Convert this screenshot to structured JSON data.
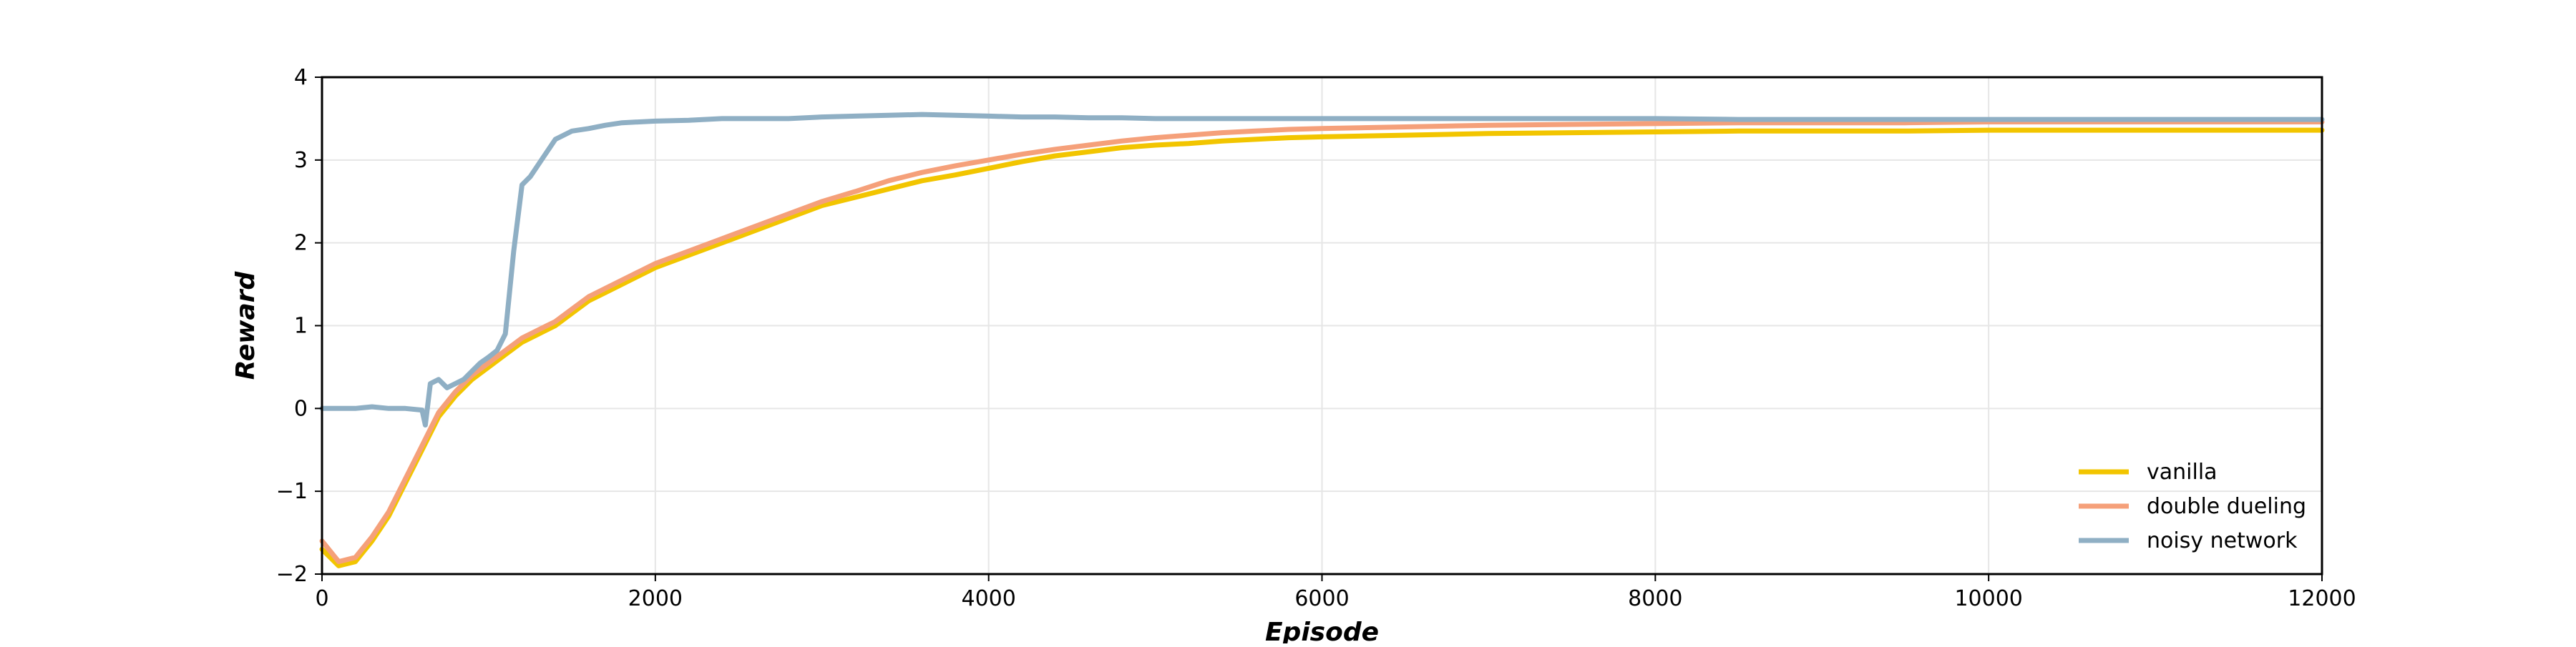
{
  "chart_data": {
    "type": "line",
    "title": "",
    "xlabel": "Episode",
    "ylabel": "Reward",
    "xlim": [
      0,
      12000
    ],
    "ylim": [
      -2,
      4
    ],
    "xticks": [
      0,
      2000,
      4000,
      6000,
      8000,
      10000,
      12000
    ],
    "xtick_labels": [
      "0",
      "2000",
      "4000",
      "6000",
      "8000",
      "10000",
      "12000"
    ],
    "yticks": [
      -2,
      -1,
      0,
      1,
      2,
      3,
      4
    ],
    "ytick_labels": [
      "−2",
      "−1",
      "0",
      "1",
      "2",
      "3",
      "4"
    ],
    "grid": true,
    "legend_position": "lower-right",
    "series": [
      {
        "name": "vanilla",
        "color": "#f2c500",
        "x": [
          0,
          100,
          200,
          300,
          400,
          500,
          600,
          700,
          800,
          900,
          1000,
          1100,
          1200,
          1300,
          1400,
          1500,
          1600,
          1700,
          1800,
          1900,
          2000,
          2200,
          2400,
          2600,
          2800,
          3000,
          3200,
          3400,
          3600,
          3800,
          4000,
          4200,
          4400,
          4600,
          4800,
          5000,
          5200,
          5400,
          5600,
          5800,
          6000,
          6500,
          7000,
          7500,
          8000,
          8500,
          9000,
          9500,
          10000,
          10500,
          11000,
          11500,
          12000
        ],
        "y": [
          -1.7,
          -1.9,
          -1.85,
          -1.6,
          -1.3,
          -0.9,
          -0.5,
          -0.1,
          0.15,
          0.35,
          0.5,
          0.65,
          0.8,
          0.9,
          1.0,
          1.15,
          1.3,
          1.4,
          1.5,
          1.6,
          1.7,
          1.85,
          2.0,
          2.15,
          2.3,
          2.45,
          2.55,
          2.65,
          2.75,
          2.82,
          2.9,
          2.98,
          3.05,
          3.1,
          3.15,
          3.18,
          3.2,
          3.23,
          3.25,
          3.27,
          3.28,
          3.3,
          3.32,
          3.33,
          3.34,
          3.35,
          3.35,
          3.35,
          3.36,
          3.36,
          3.36,
          3.36,
          3.36
        ]
      },
      {
        "name": "double dueling",
        "color": "#f5a07a",
        "x": [
          0,
          100,
          200,
          300,
          400,
          500,
          600,
          700,
          800,
          900,
          1000,
          1100,
          1200,
          1300,
          1400,
          1500,
          1600,
          1700,
          1800,
          1900,
          2000,
          2200,
          2400,
          2600,
          2800,
          3000,
          3200,
          3400,
          3600,
          3800,
          4000,
          4200,
          4400,
          4600,
          4800,
          5000,
          5200,
          5400,
          5600,
          5800,
          6000,
          6500,
          7000,
          7500,
          8000,
          8500,
          9000,
          9500,
          10000,
          10500,
          11000,
          11500,
          12000
        ],
        "y": [
          -1.6,
          -1.85,
          -1.8,
          -1.55,
          -1.25,
          -0.85,
          -0.45,
          -0.05,
          0.2,
          0.4,
          0.55,
          0.7,
          0.85,
          0.95,
          1.05,
          1.2,
          1.35,
          1.45,
          1.55,
          1.65,
          1.75,
          1.9,
          2.05,
          2.2,
          2.35,
          2.5,
          2.62,
          2.75,
          2.85,
          2.93,
          3.0,
          3.07,
          3.13,
          3.18,
          3.23,
          3.27,
          3.3,
          3.33,
          3.35,
          3.37,
          3.38,
          3.4,
          3.42,
          3.43,
          3.44,
          3.45,
          3.45,
          3.45,
          3.46,
          3.46,
          3.46,
          3.46,
          3.46
        ]
      },
      {
        "name": "noisy network",
        "color": "#8fafc4",
        "x": [
          0,
          100,
          200,
          300,
          400,
          500,
          600,
          620,
          650,
          700,
          750,
          800,
          850,
          900,
          950,
          1000,
          1050,
          1100,
          1150,
          1200,
          1250,
          1300,
          1350,
          1400,
          1450,
          1500,
          1600,
          1700,
          1800,
          2000,
          2200,
          2400,
          2600,
          2800,
          3000,
          3200,
          3400,
          3600,
          3800,
          4000,
          4200,
          4400,
          4600,
          4800,
          5000,
          5500,
          6000,
          6500,
          7000,
          7500,
          8000,
          8500,
          9000,
          9500,
          10000,
          10500,
          11000,
          11500,
          12000
        ],
        "y": [
          0.0,
          0.0,
          0.0,
          0.02,
          0.0,
          0.0,
          -0.02,
          -0.2,
          0.3,
          0.35,
          0.25,
          0.3,
          0.35,
          0.45,
          0.55,
          0.62,
          0.7,
          0.9,
          1.9,
          2.7,
          2.8,
          2.95,
          3.1,
          3.25,
          3.3,
          3.35,
          3.38,
          3.42,
          3.45,
          3.47,
          3.48,
          3.5,
          3.5,
          3.5,
          3.52,
          3.53,
          3.54,
          3.55,
          3.54,
          3.53,
          3.52,
          3.52,
          3.51,
          3.51,
          3.5,
          3.5,
          3.5,
          3.5,
          3.5,
          3.5,
          3.5,
          3.49,
          3.49,
          3.49,
          3.49,
          3.49,
          3.49,
          3.49,
          3.49
        ]
      }
    ]
  }
}
